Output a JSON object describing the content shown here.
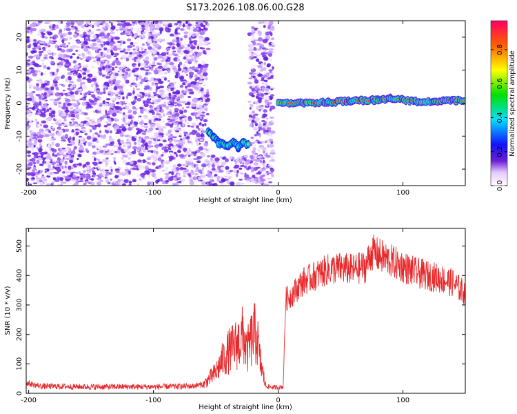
{
  "title": "S173.2026.108.06.00.G28",
  "colorbar": {
    "label": "Normalized spectral amplitude",
    "ticks": [
      0.0,
      0.2,
      0.4,
      0.6,
      0.8
    ],
    "tick_labels": [
      "0.0",
      "0.2",
      "0.4",
      "0.6",
      "0.8"
    ]
  },
  "chart_data": [
    {
      "type": "heatmap",
      "panel": "spectrogram",
      "xlabel": "Height of straight line (km)",
      "ylabel": "Frequency (Hz)",
      "xlim": [
        -202,
        150
      ],
      "ylim": [
        -25,
        25
      ],
      "xticks": [
        -200,
        -100,
        0,
        100
      ],
      "xtick_labels": [
        "-200",
        "-100",
        "0",
        "100"
      ],
      "yticks": [
        -20,
        -10,
        0,
        10,
        20
      ],
      "ytick_labels": [
        "-20",
        "-10",
        "0",
        "10",
        "20"
      ],
      "regions": [
        {
          "name": "noise",
          "x_range": [
            -202,
            -56
          ],
          "f_range": [
            -25,
            25
          ],
          "amplitude": [
            0.0,
            0.1
          ]
        },
        {
          "name": "gap",
          "x_range": [
            -56,
            -23
          ],
          "f_range": [
            -5,
            25
          ],
          "amplitude": [
            0,
            0
          ]
        },
        {
          "name": "noise",
          "x_range": [
            -23,
            -4
          ],
          "f_range": [
            -25,
            25
          ],
          "amplitude": [
            0.0,
            0.1
          ]
        },
        {
          "name": "noise",
          "x_range": [
            -56,
            -23
          ],
          "f_range": [
            -25,
            -16
          ],
          "amplitude": [
            0.0,
            0.1
          ]
        }
      ],
      "signal_track": [
        {
          "x": -56,
          "f": -8.5
        },
        {
          "x": -52,
          "f": -10
        },
        {
          "x": -48,
          "f": -12
        },
        {
          "x": -44,
          "f": -12.5
        },
        {
          "x": -40,
          "f": -13
        },
        {
          "x": -36,
          "f": -11.5
        },
        {
          "x": -32,
          "f": -13.5
        },
        {
          "x": -28,
          "f": -12
        },
        {
          "x": -24,
          "f": -12.5
        },
        {
          "x": 0,
          "f": 0
        },
        {
          "x": 40,
          "f": 0.3
        },
        {
          "x": 80,
          "f": 1
        },
        {
          "x": 90,
          "f": 1.5
        },
        {
          "x": 110,
          "f": 0.5
        },
        {
          "x": 150,
          "f": 0.8
        }
      ]
    },
    {
      "type": "line",
      "panel": "snr",
      "xlabel": "Height of straight line (km)",
      "ylabel": "SNR (10 * v/v)",
      "xlim": [
        -202,
        150
      ],
      "ylim": [
        0,
        560
      ],
      "xticks": [
        -200,
        -100,
        0,
        100
      ],
      "xtick_labels": [
        "-200",
        "-100",
        "0",
        "100"
      ],
      "yticks": [
        0,
        100,
        200,
        300,
        400,
        500
      ],
      "ytick_labels": [
        "0",
        "100",
        "200",
        "300",
        "400",
        "500"
      ],
      "series": [
        {
          "name": "SNR",
          "color": "#e8282a",
          "x": [
            -202,
            -195,
            -190,
            -150,
            -100,
            -70,
            -60,
            -50,
            -45,
            -40,
            -35,
            -30,
            -28,
            -25,
            -20,
            -17,
            -15,
            -10,
            -5,
            0,
            4,
            6,
            10,
            20,
            30,
            40,
            50,
            60,
            70,
            75,
            80,
            90,
            100,
            110,
            120,
            130,
            140,
            150
          ],
          "y": [
            35,
            28,
            24,
            22,
            22,
            24,
            30,
            70,
            110,
            140,
            160,
            180,
            200,
            140,
            200,
            200,
            120,
            25,
            20,
            20,
            22,
            320,
            330,
            380,
            400,
            420,
            425,
            420,
            430,
            480,
            470,
            450,
            430,
            410,
            400,
            390,
            375,
            340
          ]
        }
      ]
    }
  ]
}
